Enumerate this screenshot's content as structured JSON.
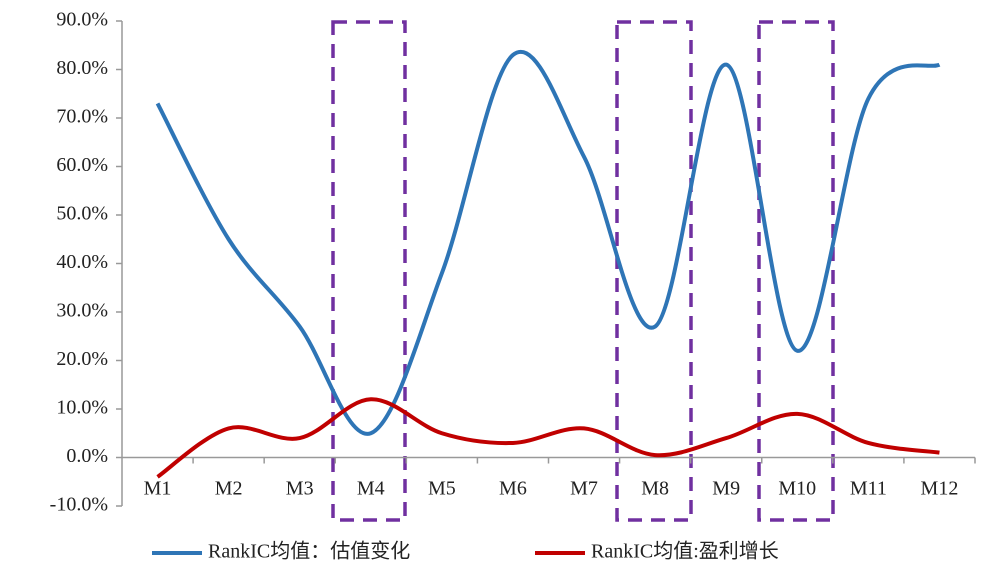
{
  "chart_data": {
    "type": "line",
    "categories": [
      "M1",
      "M2",
      "M3",
      "M4",
      "M5",
      "M6",
      "M7",
      "M8",
      "M9",
      "M10",
      "M11",
      "M12"
    ],
    "series": [
      {
        "name": "RankIC均值：估值变化",
        "color": "#2e75b6",
        "values": [
          73,
          45,
          27,
          5,
          38,
          83,
          62,
          27,
          81,
          22,
          74,
          81
        ]
      },
      {
        "name": "RankIC均值:盈利增长",
        "color": "#c00000",
        "values": [
          -4,
          6,
          4,
          12,
          5,
          3,
          6,
          0.5,
          4,
          9,
          3,
          1
        ]
      }
    ],
    "ylim": [
      -10,
      90
    ],
    "yticks": [
      {
        "value": -10,
        "label": "-10.0%"
      },
      {
        "value": 0,
        "label": "0.0%"
      },
      {
        "value": 10,
        "label": "10.0%"
      },
      {
        "value": 20,
        "label": "20.0%"
      },
      {
        "value": 30,
        "label": "30.0%"
      },
      {
        "value": 40,
        "label": "40.0%"
      },
      {
        "value": 50,
        "label": "50.0%"
      },
      {
        "value": 60,
        "label": "60.0%"
      },
      {
        "value": 70,
        "label": "70.0%"
      },
      {
        "value": 80,
        "label": "80.0%"
      },
      {
        "value": 90,
        "label": "90.0%"
      }
    ],
    "legend": "bottom"
  }
}
